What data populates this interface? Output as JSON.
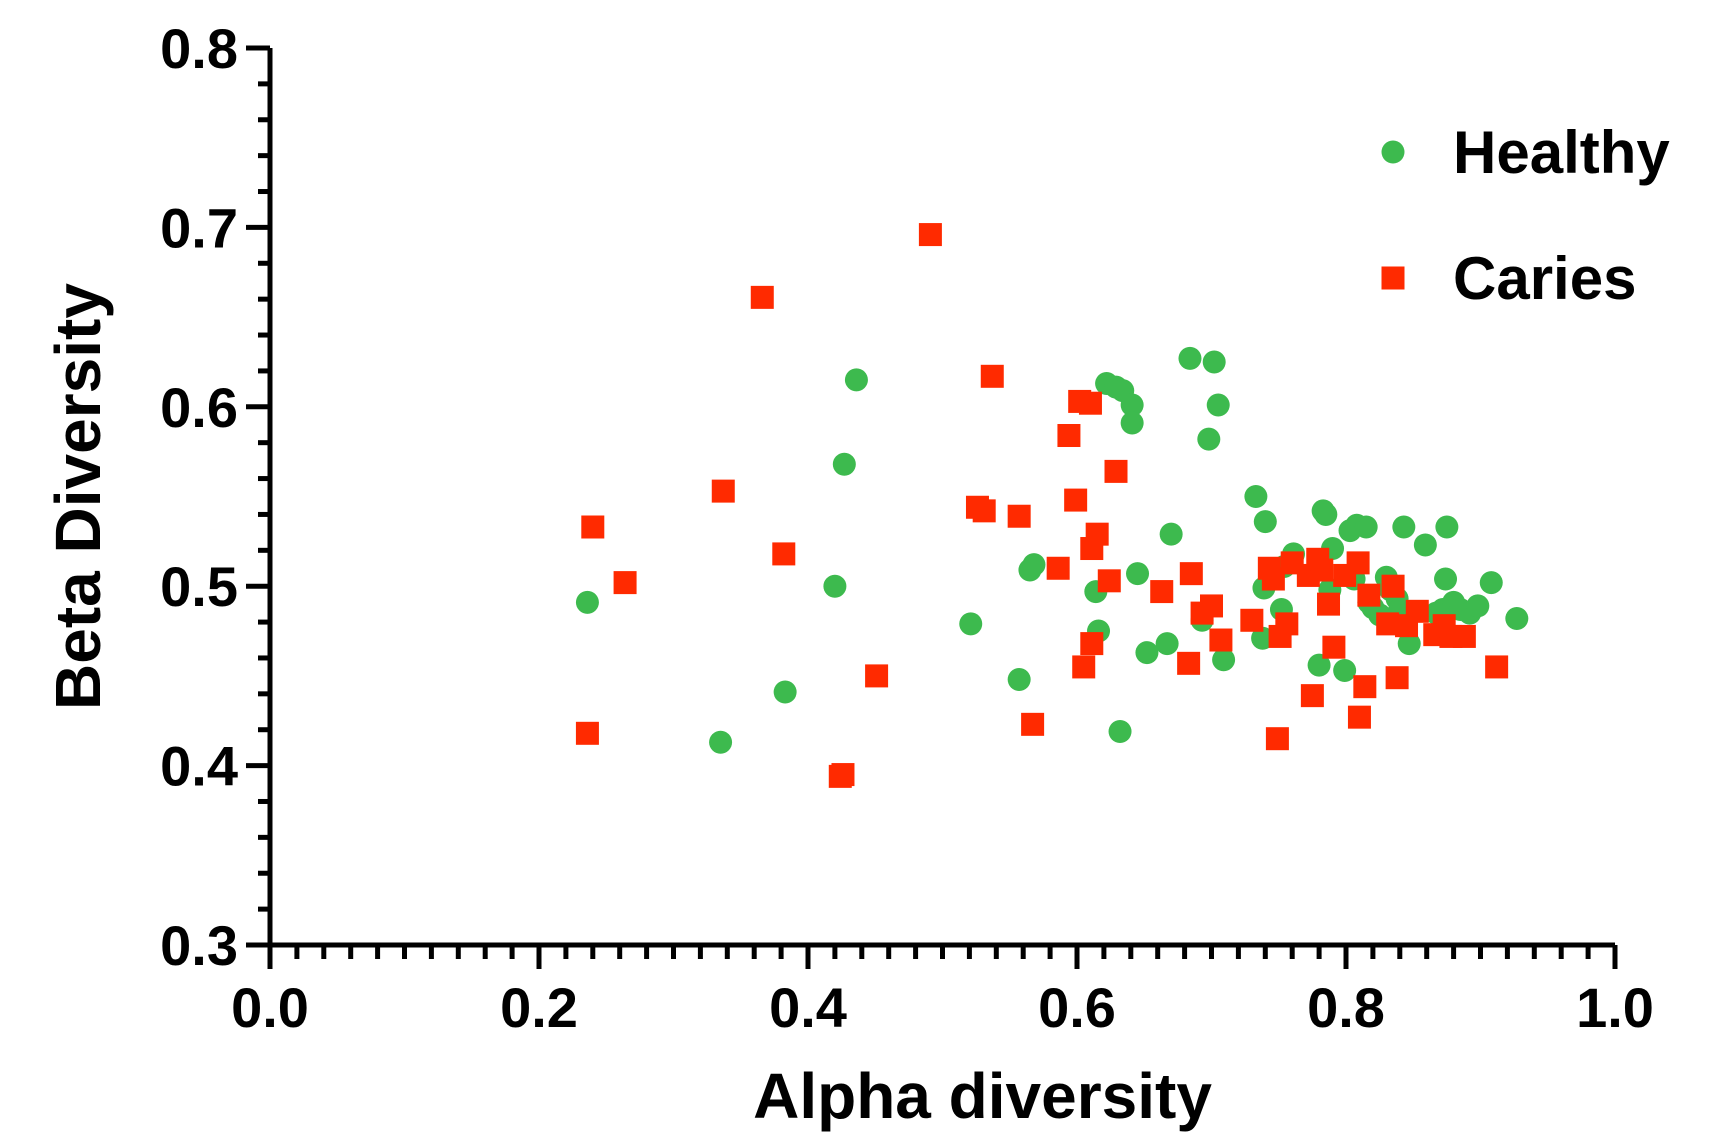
{
  "chart_data": {
    "type": "scatter",
    "xlabel": "Alpha diversity",
    "ylabel": "Beta Diversity",
    "xlim": [
      0.0,
      1.0
    ],
    "ylim": [
      0.3,
      0.8
    ],
    "x_ticks": [
      "0.0",
      "0.2",
      "0.4",
      "0.6",
      "0.8",
      "1.0"
    ],
    "y_ticks": [
      "0.3",
      "0.4",
      "0.5",
      "0.6",
      "0.7",
      "0.8"
    ],
    "grid": false,
    "legend_position": "top-right",
    "series": [
      {
        "name": "Healthy",
        "marker": "circle",
        "color": "#3dba4e",
        "points": [
          [
            0.236,
            0.491
          ],
          [
            0.335,
            0.413
          ],
          [
            0.383,
            0.441
          ],
          [
            0.42,
            0.5
          ],
          [
            0.427,
            0.568
          ],
          [
            0.436,
            0.615
          ],
          [
            0.521,
            0.479
          ],
          [
            0.557,
            0.448
          ],
          [
            0.565,
            0.509
          ],
          [
            0.568,
            0.512
          ],
          [
            0.614,
            0.497
          ],
          [
            0.616,
            0.475
          ],
          [
            0.622,
            0.613
          ],
          [
            0.629,
            0.611
          ],
          [
            0.632,
            0.419
          ],
          [
            0.634,
            0.609
          ],
          [
            0.641,
            0.601
          ],
          [
            0.641,
            0.591
          ],
          [
            0.645,
            0.507
          ],
          [
            0.652,
            0.463
          ],
          [
            0.667,
            0.468
          ],
          [
            0.67,
            0.529
          ],
          [
            0.684,
            0.627
          ],
          [
            0.693,
            0.481
          ],
          [
            0.698,
            0.582
          ],
          [
            0.702,
            0.625
          ],
          [
            0.705,
            0.601
          ],
          [
            0.709,
            0.459
          ],
          [
            0.733,
            0.55
          ],
          [
            0.738,
            0.471
          ],
          [
            0.739,
            0.499
          ],
          [
            0.74,
            0.536
          ],
          [
            0.752,
            0.487
          ],
          [
            0.754,
            0.511
          ],
          [
            0.761,
            0.518
          ],
          [
            0.78,
            0.456
          ],
          [
            0.783,
            0.542
          ],
          [
            0.785,
            0.54
          ],
          [
            0.788,
            0.498
          ],
          [
            0.79,
            0.521
          ],
          [
            0.799,
            0.453
          ],
          [
            0.803,
            0.531
          ],
          [
            0.806,
            0.504
          ],
          [
            0.808,
            0.534
          ],
          [
            0.815,
            0.533
          ],
          [
            0.817,
            0.491
          ],
          [
            0.82,
            0.488
          ],
          [
            0.825,
            0.484
          ],
          [
            0.83,
            0.505
          ],
          [
            0.833,
            0.498
          ],
          [
            0.838,
            0.493
          ],
          [
            0.84,
            0.487
          ],
          [
            0.843,
            0.533
          ],
          [
            0.847,
            0.468
          ],
          [
            0.859,
            0.523
          ],
          [
            0.867,
            0.485
          ],
          [
            0.872,
            0.487
          ],
          [
            0.874,
            0.504
          ],
          [
            0.875,
            0.533
          ],
          [
            0.88,
            0.491
          ],
          [
            0.885,
            0.487
          ],
          [
            0.892,
            0.485
          ],
          [
            0.898,
            0.489
          ],
          [
            0.908,
            0.502
          ],
          [
            0.927,
            0.482
          ]
        ]
      },
      {
        "name": "Caries",
        "marker": "square",
        "color": "#ff2a00",
        "points": [
          [
            0.236,
            0.418
          ],
          [
            0.24,
            0.533
          ],
          [
            0.264,
            0.502
          ],
          [
            0.337,
            0.553
          ],
          [
            0.366,
            0.661
          ],
          [
            0.382,
            0.518
          ],
          [
            0.424,
            0.394
          ],
          [
            0.426,
            0.395
          ],
          [
            0.451,
            0.45
          ],
          [
            0.491,
            0.696
          ],
          [
            0.526,
            0.544
          ],
          [
            0.531,
            0.542
          ],
          [
            0.537,
            0.617
          ],
          [
            0.557,
            0.539
          ],
          [
            0.567,
            0.423
          ],
          [
            0.586,
            0.51
          ],
          [
            0.594,
            0.584
          ],
          [
            0.599,
            0.548
          ],
          [
            0.602,
            0.603
          ],
          [
            0.605,
            0.455
          ],
          [
            0.61,
            0.602
          ],
          [
            0.611,
            0.468
          ],
          [
            0.611,
            0.521
          ],
          [
            0.615,
            0.529
          ],
          [
            0.624,
            0.503
          ],
          [
            0.629,
            0.564
          ],
          [
            0.663,
            0.497
          ],
          [
            0.683,
            0.457
          ],
          [
            0.685,
            0.507
          ],
          [
            0.693,
            0.485
          ],
          [
            0.7,
            0.489
          ],
          [
            0.707,
            0.47
          ],
          [
            0.73,
            0.481
          ],
          [
            0.743,
            0.51
          ],
          [
            0.746,
            0.504
          ],
          [
            0.749,
            0.415
          ],
          [
            0.751,
            0.472
          ],
          [
            0.756,
            0.479
          ],
          [
            0.76,
            0.513
          ],
          [
            0.772,
            0.506
          ],
          [
            0.775,
            0.439
          ],
          [
            0.779,
            0.515
          ],
          [
            0.782,
            0.509
          ],
          [
            0.787,
            0.49
          ],
          [
            0.791,
            0.466
          ],
          [
            0.799,
            0.506
          ],
          [
            0.809,
            0.513
          ],
          [
            0.81,
            0.427
          ],
          [
            0.814,
            0.444
          ],
          [
            0.817,
            0.495
          ],
          [
            0.831,
            0.479
          ],
          [
            0.835,
            0.5
          ],
          [
            0.838,
            0.449
          ],
          [
            0.845,
            0.478
          ],
          [
            0.853,
            0.486
          ],
          [
            0.866,
            0.473
          ],
          [
            0.873,
            0.478
          ],
          [
            0.878,
            0.472
          ],
          [
            0.888,
            0.472
          ],
          [
            0.912,
            0.455
          ]
        ]
      }
    ]
  }
}
